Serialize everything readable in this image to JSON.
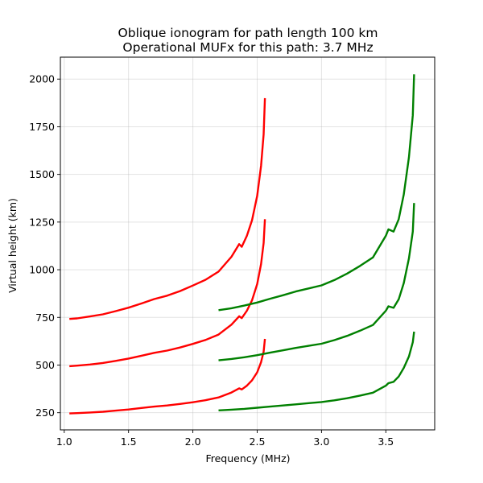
{
  "chart_data": {
    "type": "line",
    "title_lines": [
      "Oblique ionogram for path length 100 km",
      "Operational MUFx for this path: 3.7 MHz"
    ],
    "xlabel": "Frequency (MHz)",
    "ylabel": "Virtual height (km)",
    "xlim": [
      0.97,
      3.88
    ],
    "ylim": [
      160,
      2115
    ],
    "xticks": [
      1.0,
      1.5,
      2.0,
      2.5,
      3.0,
      3.5
    ],
    "xtick_labels": [
      "1.0",
      "1.5",
      "2.0",
      "2.5",
      "3.0",
      "3.5"
    ],
    "yticks": [
      250,
      500,
      750,
      1000,
      1250,
      1500,
      1750,
      2000
    ],
    "ytick_labels": [
      "250",
      "500",
      "750",
      "1000",
      "1250",
      "1500",
      "1750",
      "2000"
    ],
    "grid": true,
    "series": [
      {
        "color": "#ff0000",
        "x": [
          1.04,
          1.1,
          1.2,
          1.3,
          1.4,
          1.5,
          1.6,
          1.7,
          1.8,
          1.9,
          2.0,
          2.1,
          2.2,
          2.3,
          2.36,
          2.38,
          2.42,
          2.46,
          2.5,
          2.53,
          2.55,
          2.56
        ],
        "y": [
          246,
          248,
          251,
          255,
          261,
          267,
          275,
          282,
          288,
          296,
          305,
          316,
          330,
          356,
          378,
          372,
          392,
          420,
          462,
          515,
          570,
          637
        ]
      },
      {
        "color": "#ff0000",
        "x": [
          1.04,
          1.1,
          1.2,
          1.3,
          1.4,
          1.5,
          1.6,
          1.7,
          1.8,
          1.9,
          2.0,
          2.1,
          2.2,
          2.3,
          2.36,
          2.38,
          2.42,
          2.46,
          2.5,
          2.53,
          2.55,
          2.56
        ],
        "y": [
          494,
          497,
          503,
          511,
          522,
          534,
          549,
          564,
          576,
          592,
          611,
          632,
          660,
          712,
          756,
          746,
          785,
          840,
          925,
          1030,
          1140,
          1265
        ]
      },
      {
        "color": "#ff0000",
        "x": [
          1.04,
          1.1,
          1.2,
          1.3,
          1.4,
          1.5,
          1.6,
          1.7,
          1.8,
          1.9,
          2.0,
          2.1,
          2.2,
          2.3,
          2.36,
          2.38,
          2.42,
          2.46,
          2.5,
          2.53,
          2.55,
          2.56
        ],
        "y": [
          742,
          745,
          755,
          766,
          783,
          801,
          823,
          846,
          864,
          888,
          917,
          948,
          990,
          1068,
          1134,
          1120,
          1178,
          1260,
          1388,
          1545,
          1710,
          1900
        ]
      },
      {
        "color": "#008000",
        "x": [
          2.2,
          2.3,
          2.4,
          2.5,
          2.6,
          2.7,
          2.8,
          2.9,
          3.0,
          3.1,
          3.2,
          3.3,
          3.4,
          3.5,
          3.52,
          3.56,
          3.6,
          3.64,
          3.68,
          3.71,
          3.72
        ],
        "y": [
          262,
          266,
          270,
          276,
          282,
          288,
          294,
          300,
          306,
          315,
          326,
          340,
          355,
          392,
          405,
          412,
          440,
          485,
          545,
          620,
          675
        ]
      },
      {
        "color": "#008000",
        "x": [
          2.2,
          2.3,
          2.4,
          2.5,
          2.6,
          2.7,
          2.8,
          2.9,
          3.0,
          3.1,
          3.2,
          3.3,
          3.4,
          3.5,
          3.52,
          3.56,
          3.6,
          3.64,
          3.68,
          3.71,
          3.72
        ],
        "y": [
          525,
          532,
          541,
          552,
          565,
          577,
          590,
          601,
          612,
          631,
          653,
          680,
          710,
          785,
          808,
          800,
          845,
          930,
          1060,
          1200,
          1350
        ]
      },
      {
        "color": "#008000",
        "x": [
          2.2,
          2.3,
          2.4,
          2.5,
          2.6,
          2.7,
          2.8,
          2.9,
          3.0,
          3.1,
          3.2,
          3.3,
          3.4,
          3.5,
          3.52,
          3.56,
          3.6,
          3.64,
          3.68,
          3.71,
          3.72
        ],
        "y": [
          788,
          798,
          812,
          828,
          848,
          866,
          886,
          902,
          918,
          946,
          980,
          1020,
          1065,
          1178,
          1212,
          1200,
          1265,
          1395,
          1590,
          1810,
          2025
        ]
      }
    ]
  }
}
